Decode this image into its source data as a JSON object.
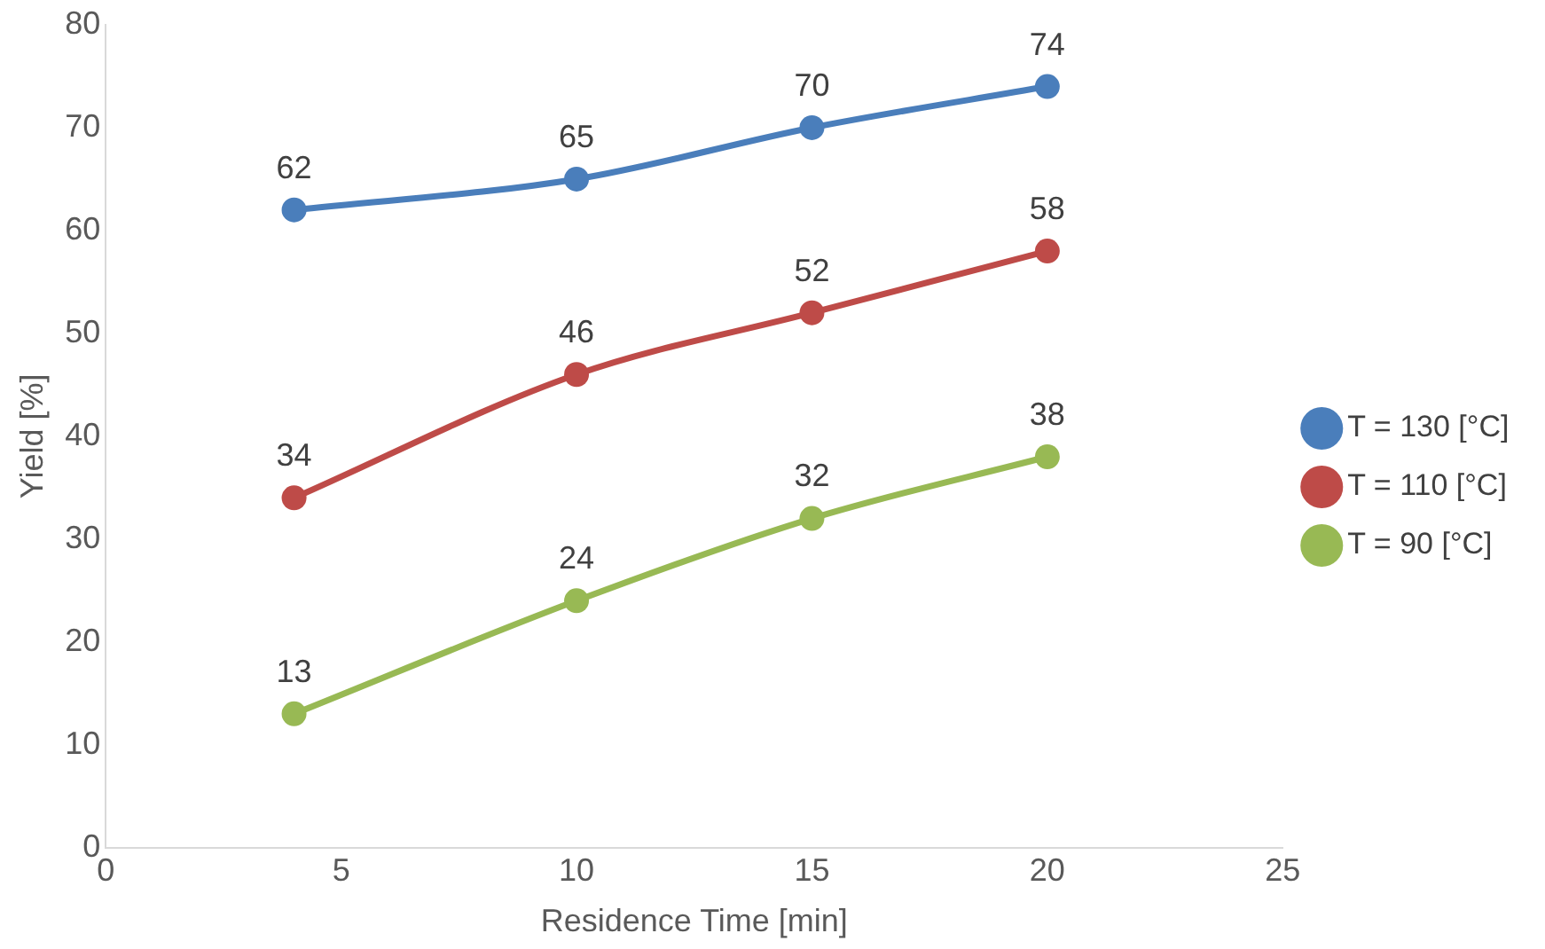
{
  "chart_data": {
    "type": "line",
    "xlabel": "Residence Time [min]",
    "ylabel": "Yield [%]",
    "x": [
      4,
      10,
      15,
      20
    ],
    "series": [
      {
        "name": "T = 130 [°C]",
        "color": "#4a7ebb",
        "values": [
          62,
          65,
          70,
          74
        ]
      },
      {
        "name": "T = 110 [°C]",
        "color": "#be4b48",
        "values": [
          34,
          46,
          52,
          58
        ]
      },
      {
        "name": "T = 90 [°C]",
        "color": "#98b954",
        "values": [
          13,
          24,
          32,
          38
        ]
      }
    ],
    "xlim": [
      0,
      25
    ],
    "xticks": [
      0,
      5,
      10,
      15,
      20,
      25
    ],
    "ylim": [
      0,
      80
    ],
    "yticks": [
      0,
      10,
      20,
      30,
      40,
      50,
      60,
      70,
      80
    ],
    "grid": false,
    "legend": "right",
    "marker": "circle",
    "line_style": "solid",
    "data_labels": true
  }
}
